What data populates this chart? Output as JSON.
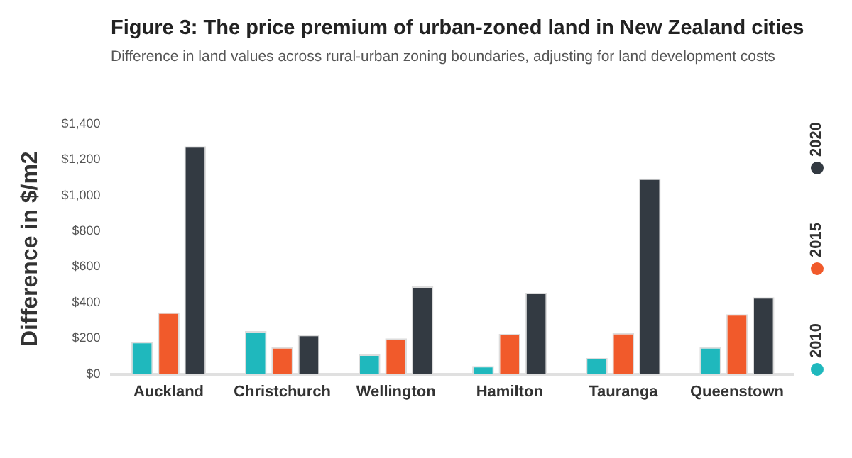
{
  "chart_data": {
    "type": "bar",
    "title": "Figure 3: The price premium of urban-zoned land in New Zealand cities",
    "subtitle": "Difference in land values across rural-urban zoning boundaries, adjusting for land development costs",
    "ylabel": "Difference in $/m2",
    "categories": [
      "Auckland",
      "Christchurch",
      "Wellington",
      "Hamilton",
      "Tauranga",
      "Queenstown"
    ],
    "series": [
      {
        "name": "2010",
        "color": "#1fb8bd",
        "values": [
          180,
          240,
          110,
          45,
          90,
          150
        ]
      },
      {
        "name": "2015",
        "color": "#f15a2b",
        "values": [
          345,
          150,
          200,
          225,
          230,
          335
        ]
      },
      {
        "name": "2020",
        "color": "#333a42",
        "values": [
          1275,
          220,
          490,
          455,
          1095,
          430
        ]
      }
    ],
    "ylim": [
      0,
      1400
    ],
    "yticks": [
      {
        "value": 0,
        "label": "$0"
      },
      {
        "value": 200,
        "label": "$200"
      },
      {
        "value": 400,
        "label": "$400"
      },
      {
        "value": 600,
        "label": "$600"
      },
      {
        "value": 800,
        "label": "$800"
      },
      {
        "value": 1000,
        "label": "$1,000"
      },
      {
        "value": 1200,
        "label": "$1,200"
      },
      {
        "value": 1400,
        "label": "$1,400"
      }
    ],
    "grid": false,
    "legend": "right"
  }
}
